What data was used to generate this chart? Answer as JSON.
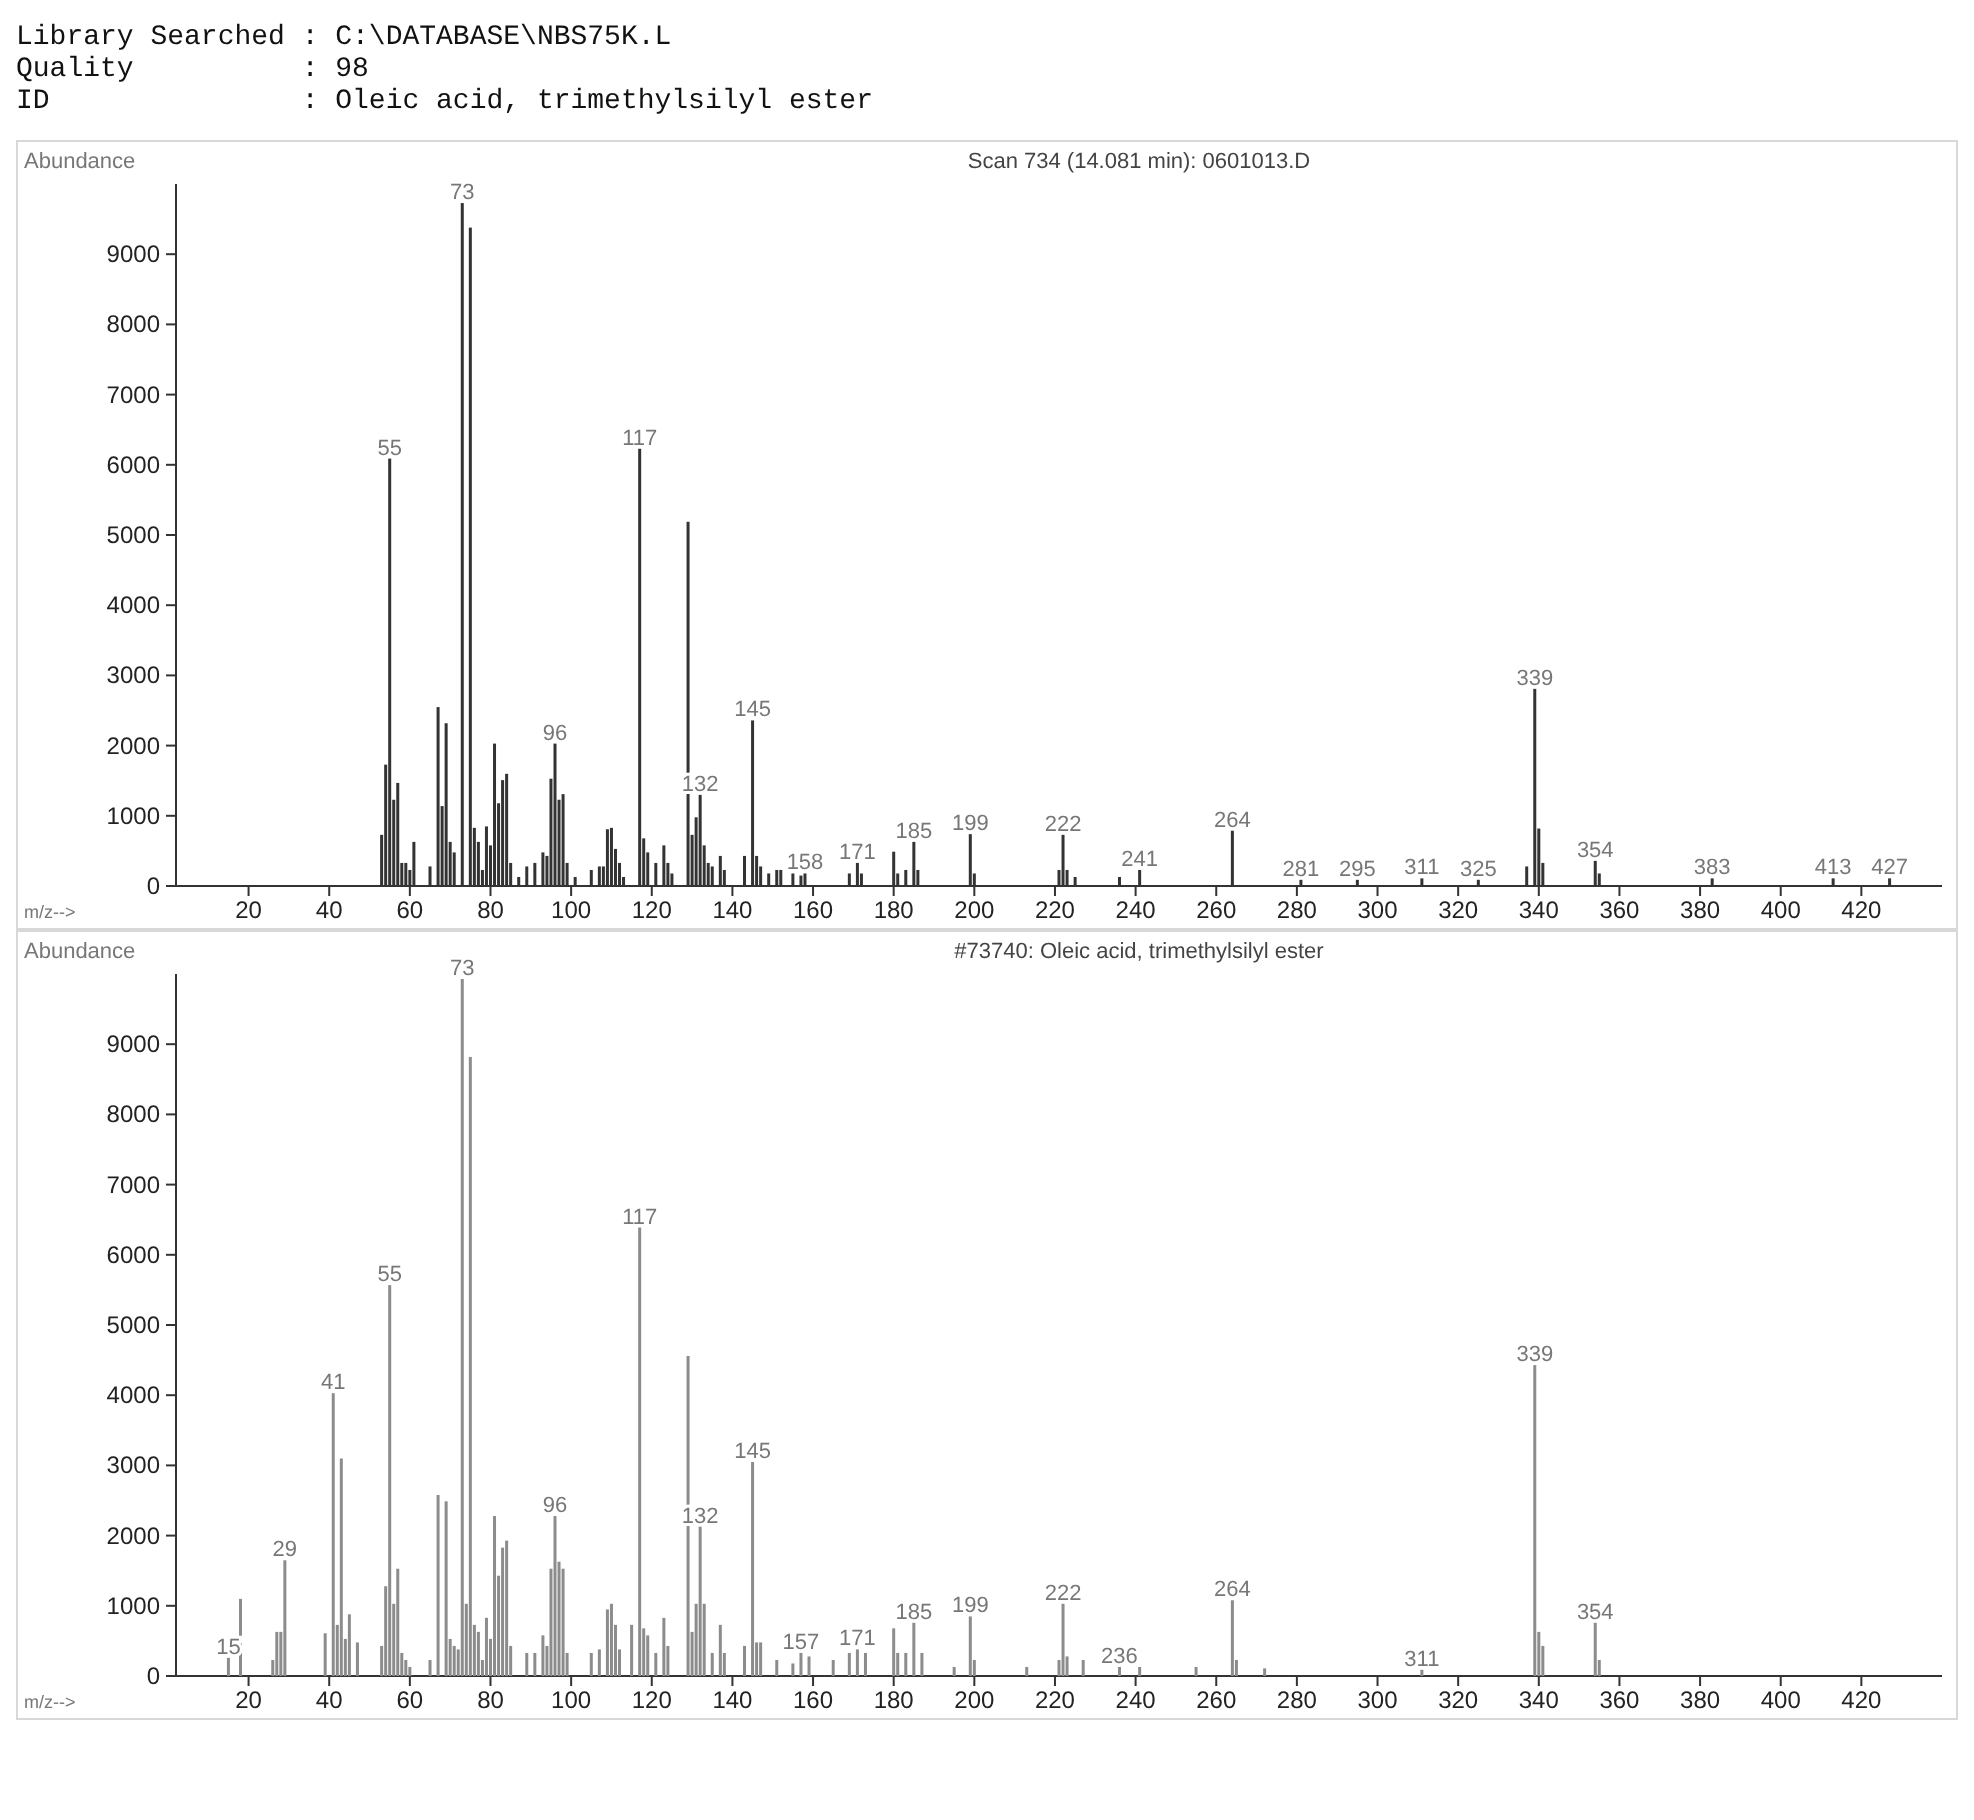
{
  "chart_data": [
    {
      "type": "bar",
      "title": "Scan 734 (14.081 min): 0601013.D",
      "xlabel": "m/z-->",
      "ylabel": "Abundance",
      "color": "#333333",
      "annotations": [
        "Library Searched : C:\\DATABASE\\NBS75K.L",
        "Quality          : 98",
        "ID               : Oleic acid, trimethylsilyl ester",
        {
          "text": "55",
          "x": 55,
          "y": 6060
        },
        {
          "text": "73",
          "x": 73,
          "y": 9700
        },
        {
          "text": "96",
          "x": 96,
          "y": 2000
        },
        {
          "text": "117",
          "x": 117,
          "y": 6200
        },
        {
          "text": "132",
          "x": 132,
          "y": 1270
        },
        {
          "text": "145",
          "x": 145,
          "y": 2330
        },
        {
          "text": "158",
          "x": 158,
          "y": 150
        },
        {
          "text": "171",
          "x": 171,
          "y": 300
        },
        {
          "text": "185",
          "x": 185,
          "y": 600
        },
        {
          "text": "199",
          "x": 199,
          "y": 710
        },
        {
          "text": "222",
          "x": 222,
          "y": 700
        },
        {
          "text": "241",
          "x": 241,
          "y": 200
        },
        {
          "text": "264",
          "x": 264,
          "y": 760
        },
        {
          "text": "281",
          "x": 281,
          "y": 60
        },
        {
          "text": "295",
          "x": 295,
          "y": 60
        },
        {
          "text": "311",
          "x": 311,
          "y": 80
        },
        {
          "text": "325",
          "x": 325,
          "y": 60
        },
        {
          "text": "339",
          "x": 339,
          "y": 2780
        },
        {
          "text": "354",
          "x": 354,
          "y": 330
        },
        {
          "text": "383",
          "x": 383,
          "y": 80
        },
        {
          "text": "413",
          "x": 413,
          "y": 80
        },
        {
          "text": "427",
          "x": 427,
          "y": 80
        }
      ],
      "x": [
        53,
        54,
        55,
        56,
        57,
        58,
        59,
        60,
        61,
        65,
        67,
        68,
        69,
        70,
        71,
        73,
        75,
        76,
        77,
        78,
        79,
        80,
        81,
        82,
        83,
        84,
        85,
        87,
        89,
        91,
        93,
        94,
        95,
        96,
        97,
        98,
        99,
        101,
        105,
        107,
        108,
        109,
        110,
        111,
        112,
        113,
        117,
        118,
        119,
        121,
        123,
        124,
        125,
        129,
        130,
        131,
        132,
        133,
        134,
        135,
        137,
        138,
        143,
        145,
        146,
        147,
        149,
        151,
        152,
        155,
        157,
        158,
        169,
        171,
        172,
        180,
        181,
        183,
        185,
        186,
        199,
        200,
        221,
        222,
        223,
        225,
        236,
        241,
        264,
        281,
        295,
        311,
        325,
        337,
        339,
        340,
        341,
        354,
        355,
        383,
        413,
        427
      ],
      "values": [
        700,
        1700,
        6060,
        1200,
        1440,
        300,
        300,
        200,
        600,
        250,
        2520,
        1110,
        2290,
        600,
        450,
        9700,
        9350,
        800,
        600,
        200,
        820,
        550,
        2000,
        1150,
        1480,
        1570,
        300,
        100,
        250,
        300,
        450,
        400,
        1500,
        2000,
        1200,
        1280,
        300,
        100,
        200,
        250,
        250,
        780,
        800,
        500,
        300,
        100,
        6200,
        650,
        450,
        300,
        550,
        300,
        150,
        5160,
        700,
        950,
        1270,
        550,
        300,
        250,
        400,
        200,
        400,
        2330,
        400,
        250,
        150,
        200,
        200,
        150,
        120,
        150,
        150,
        300,
        150,
        460,
        150,
        200,
        600,
        200,
        710,
        150,
        200,
        700,
        200,
        100,
        100,
        200,
        760,
        60,
        60,
        80,
        60,
        250,
        2780,
        790,
        300,
        330,
        150,
        80,
        80,
        80
      ],
      "xlim": [
        2,
        440
      ],
      "xticks": [
        20,
        40,
        60,
        80,
        100,
        120,
        140,
        160,
        180,
        200,
        220,
        240,
        260,
        280,
        300,
        320,
        340,
        360,
        380,
        400,
        420
      ],
      "ylim": [
        0,
        10000
      ],
      "yticks": [
        0,
        1000,
        2000,
        3000,
        4000,
        5000,
        6000,
        7000,
        8000,
        9000
      ]
    },
    {
      "type": "bar",
      "title": "#73740: Oleic acid, trimethylsilyl ester",
      "xlabel": "m/z-->",
      "ylabel": "Abundance",
      "color": "#8c8c8c",
      "annotations": [
        {
          "text": "15",
          "x": 15,
          "y": 230
        },
        {
          "text": "29",
          "x": 29,
          "y": 1620
        },
        {
          "text": "41",
          "x": 41,
          "y": 4000
        },
        {
          "text": "55",
          "x": 55,
          "y": 5540
        },
        {
          "text": "73",
          "x": 73,
          "y": 9900
        },
        {
          "text": "96",
          "x": 96,
          "y": 2250
        },
        {
          "text": "117",
          "x": 117,
          "y": 6360
        },
        {
          "text": "132",
          "x": 132,
          "y": 2100
        },
        {
          "text": "145",
          "x": 145,
          "y": 3020
        },
        {
          "text": "157",
          "x": 157,
          "y": 300
        },
        {
          "text": "171",
          "x": 171,
          "y": 350
        },
        {
          "text": "185",
          "x": 185,
          "y": 730
        },
        {
          "text": "199",
          "x": 199,
          "y": 820
        },
        {
          "text": "222",
          "x": 222,
          "y": 1000
        },
        {
          "text": "236",
          "x": 236,
          "y": 100
        },
        {
          "text": "264",
          "x": 264,
          "y": 1050
        },
        {
          "text": "311",
          "x": 311,
          "y": 60
        },
        {
          "text": "339",
          "x": 339,
          "y": 4400
        },
        {
          "text": "354",
          "x": 354,
          "y": 730
        }
      ],
      "x": [
        15,
        18,
        26,
        27,
        28,
        29,
        39,
        41,
        42,
        43,
        44,
        45,
        47,
        53,
        54,
        55,
        56,
        57,
        58,
        59,
        60,
        65,
        67,
        69,
        70,
        71,
        72,
        73,
        74,
        75,
        76,
        77,
        78,
        79,
        80,
        81,
        82,
        83,
        84,
        85,
        89,
        91,
        93,
        94,
        95,
        96,
        97,
        98,
        99,
        105,
        107,
        109,
        110,
        111,
        112,
        115,
        117,
        118,
        119,
        121,
        123,
        124,
        129,
        130,
        131,
        132,
        133,
        135,
        137,
        138,
        143,
        145,
        146,
        147,
        151,
        155,
        157,
        159,
        165,
        169,
        171,
        173,
        180,
        181,
        183,
        185,
        187,
        195,
        199,
        200,
        213,
        221,
        222,
        223,
        227,
        236,
        241,
        255,
        264,
        265,
        272,
        311,
        339,
        340,
        341,
        354,
        355
      ],
      "values": [
        230,
        1070,
        200,
        600,
        600,
        1620,
        580,
        4000,
        700,
        3070,
        500,
        850,
        450,
        400,
        1250,
        5540,
        1000,
        1500,
        300,
        200,
        100,
        200,
        2550,
        2460,
        500,
        400,
        350,
        9900,
        1000,
        8790,
        700,
        600,
        200,
        800,
        500,
        2250,
        1400,
        1800,
        1900,
        400,
        300,
        300,
        550,
        400,
        1500,
        2250,
        1600,
        1500,
        300,
        300,
        350,
        920,
        1000,
        700,
        350,
        700,
        6360,
        650,
        550,
        300,
        800,
        400,
        4530,
        600,
        1000,
        2100,
        1000,
        300,
        700,
        300,
        400,
        3020,
        450,
        450,
        200,
        150,
        300,
        250,
        200,
        300,
        350,
        300,
        650,
        300,
        300,
        730,
        300,
        100,
        820,
        200,
        100,
        200,
        1000,
        250,
        200,
        100,
        100,
        100,
        1050,
        200,
        80,
        60,
        4400,
        600,
        400,
        730,
        200
      ],
      "xlim": [
        2,
        440
      ],
      "xticks": [
        20,
        40,
        60,
        80,
        100,
        120,
        140,
        160,
        180,
        200,
        220,
        240,
        260,
        280,
        300,
        320,
        340,
        360,
        380,
        400,
        420
      ],
      "ylim": [
        0,
        10000
      ],
      "yticks": [
        0,
        1000,
        2000,
        3000,
        4000,
        5000,
        6000,
        7000,
        8000,
        9000
      ]
    }
  ]
}
